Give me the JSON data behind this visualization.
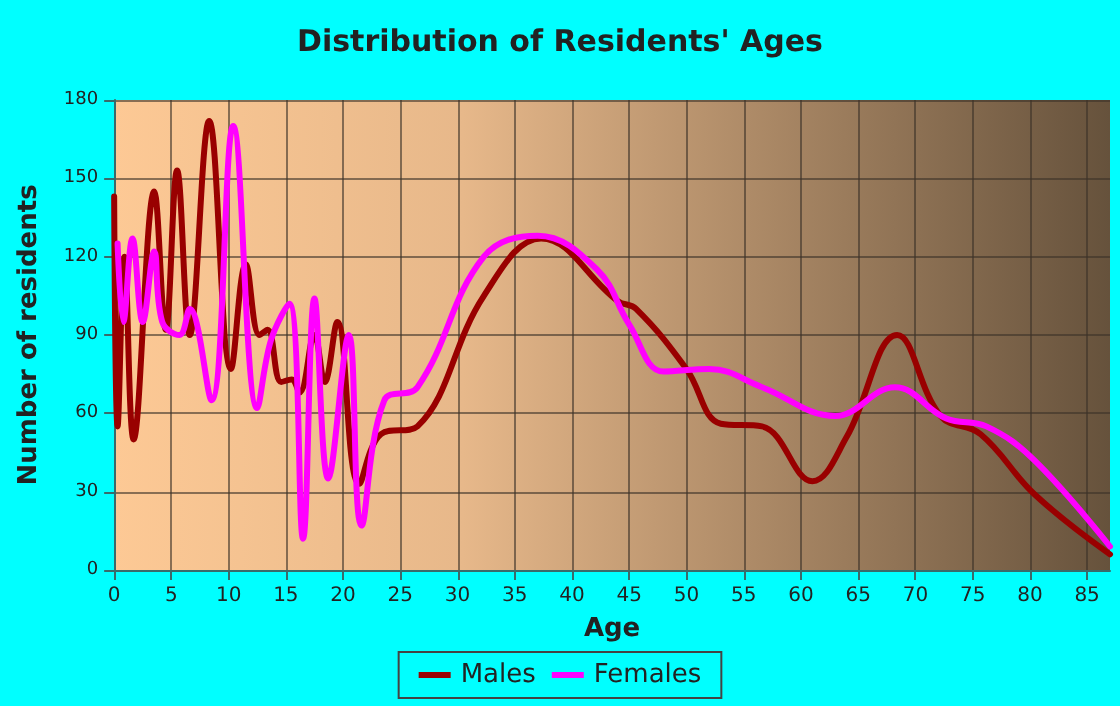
{
  "chart_data": {
    "type": "line",
    "title": "Distribution of Residents' Ages",
    "xlabel": "Age",
    "ylabel": "Number of residents",
    "xlim": [
      0,
      87
    ],
    "xticks": [
      0,
      5,
      10,
      15,
      20,
      25,
      30,
      35,
      40,
      45,
      50,
      55,
      60,
      65,
      70,
      75,
      80,
      85
    ],
    "ylim": [
      0,
      180
    ],
    "yticks": [
      0,
      30,
      60,
      90,
      120,
      150,
      180
    ],
    "grid": true,
    "legend": "bottom",
    "series": [
      {
        "name": "Males",
        "color": "#990000",
        "x": [
          0,
          0.3,
          0.9,
          1.7,
          3.5,
          4.5,
          5.5,
          6.6,
          8.3,
          10.2,
          11.5,
          12.7,
          13.4,
          14.6,
          15.5,
          16.2,
          17.5,
          18.4,
          19.5,
          21.4,
          23.3,
          26.5,
          32.3,
          37.3,
          44,
          45.6,
          50,
          53,
          56.6,
          61,
          64,
          68.4,
          72.2,
          75.7,
          80.4,
          87
        ],
        "values": [
          143,
          55,
          120,
          50,
          145,
          92,
          153,
          90,
          172,
          77,
          117,
          90,
          92,
          72,
          73,
          68,
          90,
          72,
          95,
          33,
          52,
          55,
          105,
          127,
          103,
          100,
          77,
          56,
          55,
          34,
          51,
          90,
          59,
          52,
          29,
          6
        ]
      },
      {
        "name": "Females",
        "color": "#ff00ff",
        "x": [
          0.3,
          0.8,
          1.6,
          2.5,
          3.5,
          4.2,
          5.7,
          6.6,
          8.5,
          10.4,
          12.5,
          13.7,
          15.3,
          16.5,
          17.5,
          18.7,
          20.5,
          21.6,
          23.6,
          26.5,
          32.3,
          37,
          42.2,
          45,
          48,
          52,
          56.6,
          63,
          68.2,
          72.7,
          76.2,
          80.4,
          87
        ],
        "values": [
          125,
          95,
          127,
          95,
          122,
          95,
          90,
          100,
          65,
          170,
          62,
          88,
          102,
          12,
          104,
          35,
          90,
          17,
          65,
          70,
          120,
          128,
          115,
          94,
          76,
          77,
          70,
          59,
          70,
          58,
          55,
          42,
          9
        ]
      }
    ]
  }
}
